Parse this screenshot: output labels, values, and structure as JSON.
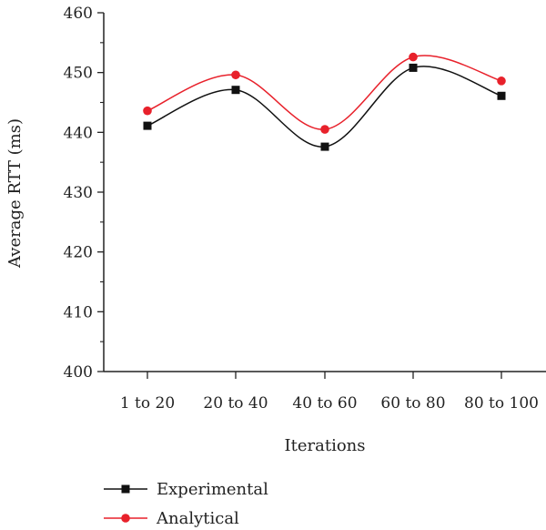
{
  "chart_data": {
    "type": "line",
    "categories": [
      "1 to 20",
      "20 to 40",
      "40 to 60",
      "60 to 80",
      "80 to 100"
    ],
    "series": [
      {
        "name": "Experimental",
        "color": "#111111",
        "marker": "square",
        "values": [
          441.1,
          447.1,
          437.6,
          450.8,
          446.1
        ]
      },
      {
        "name": "Analytical",
        "color": "#e8212b",
        "marker": "circle",
        "values": [
          443.6,
          449.6,
          440.5,
          452.6,
          448.6
        ]
      }
    ],
    "xlabel": "Iterations",
    "ylabel": "Average RTT (ms)",
    "ylim": [
      400,
      460
    ],
    "yticks": [
      400,
      410,
      420,
      430,
      440,
      450,
      460
    ],
    "smooth": true,
    "grid": false,
    "legend_position": "bottom-left"
  }
}
